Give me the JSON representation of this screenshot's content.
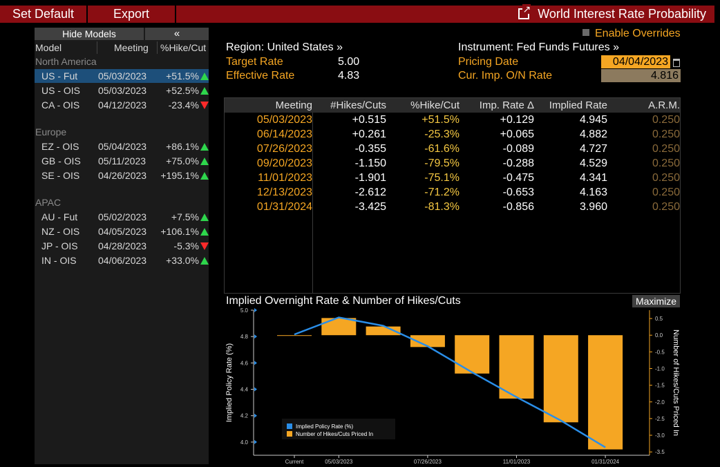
{
  "topbar": {
    "set_default": "Set Default",
    "export": "Export",
    "title": "World Interest Rate Probability",
    "external_icon": "external-link-icon"
  },
  "models": {
    "hide_models": "Hide Models",
    "collapse_icon": "«",
    "headers": {
      "model": "Model",
      "meeting": "Meeting",
      "pct": "%Hike/Cut"
    },
    "regions": [
      {
        "name": "North America",
        "rows": [
          {
            "model": "US - Fut",
            "meeting": "05/03/2023",
            "pct": "+51.5%",
            "dir": "up",
            "selected": true
          },
          {
            "model": "US - OIS",
            "meeting": "05/03/2023",
            "pct": "+52.5%",
            "dir": "up"
          },
          {
            "model": "CA - OIS",
            "meeting": "04/12/2023",
            "pct": "-23.4%",
            "dir": "down"
          }
        ]
      },
      {
        "name": "Europe",
        "rows": [
          {
            "model": "EZ - OIS",
            "meeting": "05/04/2023",
            "pct": "+86.1%",
            "dir": "up"
          },
          {
            "model": "GB - OIS",
            "meeting": "05/11/2023",
            "pct": "+75.0%",
            "dir": "up"
          },
          {
            "model": "SE - OIS",
            "meeting": "04/26/2023",
            "pct": "+195.1%",
            "dir": "up"
          }
        ]
      },
      {
        "name": "APAC",
        "rows": [
          {
            "model": "AU - Fut",
            "meeting": "05/02/2023",
            "pct": "+7.5%",
            "dir": "up"
          },
          {
            "model": "NZ - OIS",
            "meeting": "04/05/2023",
            "pct": "+106.1%",
            "dir": "up"
          },
          {
            "model": "JP - OIS",
            "meeting": "04/28/2023",
            "pct": "-5.3%",
            "dir": "down"
          },
          {
            "model": "IN - OIS",
            "meeting": "04/06/2023",
            "pct": "+33.0%",
            "dir": "up"
          }
        ]
      }
    ]
  },
  "overview": {
    "enable_overrides": "Enable Overrides",
    "region": "Region: United States »",
    "instrument": "Instrument: Fed Funds Futures »",
    "target_rate_label": "Target Rate",
    "target_rate": "5.00",
    "effective_rate_label": "Effective Rate",
    "effective_rate": "4.83",
    "pricing_date_label": "Pricing Date",
    "pricing_date": "04/04/2023",
    "on_rate_label": "Cur. Imp. O/N Rate",
    "on_rate": "4.816"
  },
  "table": {
    "headers": [
      "Meeting",
      "#Hikes/Cuts",
      "%Hike/Cut",
      "Imp. Rate Δ",
      "Implied Rate",
      "A.R.M."
    ],
    "rows": [
      [
        "05/03/2023",
        "+0.515",
        "+51.5%",
        "+0.129",
        "4.945",
        "0.250"
      ],
      [
        "06/14/2023",
        "+0.261",
        "-25.3%",
        "+0.065",
        "4.882",
        "0.250"
      ],
      [
        "07/26/2023",
        "-0.355",
        "-61.6%",
        "-0.089",
        "4.727",
        "0.250"
      ],
      [
        "09/20/2023",
        "-1.150",
        "-79.5%",
        "-0.288",
        "4.529",
        "0.250"
      ],
      [
        "11/01/2023",
        "-1.901",
        "-75.1%",
        "-0.475",
        "4.341",
        "0.250"
      ],
      [
        "12/13/2023",
        "-2.612",
        "-71.2%",
        "-0.653",
        "4.163",
        "0.250"
      ],
      [
        "01/31/2024",
        "-3.425",
        "-81.3%",
        "-0.856",
        "3.960",
        "0.250"
      ]
    ]
  },
  "chart": {
    "title": "Implied Overnight Rate & Number of Hikes/Cuts",
    "maximize": "Maximize"
  },
  "chart_data": {
    "type": "bar",
    "categories": [
      "Current",
      "05/03/2023",
      "06/14/2023",
      "07/26/2023",
      "09/20/2023",
      "11/01/2023",
      "12/13/2023",
      "01/31/2024"
    ],
    "x_tick_labels": [
      "Current",
      "05/03/2023",
      "07/26/2023",
      "11/01/2023",
      "01/31/2024"
    ],
    "series": [
      {
        "name": "Implied Policy Rate (%)",
        "type": "line",
        "axis": "left",
        "color": "#2a8ee8",
        "values": [
          4.816,
          4.945,
          4.882,
          4.727,
          4.529,
          4.341,
          4.163,
          3.96
        ]
      },
      {
        "name": "Number of Hikes/Cuts Priced In",
        "type": "bar",
        "axis": "right",
        "color": "#f5a623",
        "values": [
          0.0,
          0.515,
          0.261,
          -0.355,
          -1.15,
          -1.901,
          -2.612,
          -3.425
        ]
      }
    ],
    "ylabel": "Implied Policy Rate (%)",
    "ylim": [
      3.9,
      5.0
    ],
    "yticks": [
      "5.0",
      "4.8",
      "4.6",
      "4.4",
      "4.2",
      "4.0"
    ],
    "y2label": "Number of Hikes/Cuts Priced In",
    "y2lim": [
      -3.6,
      0.75
    ],
    "y2ticks": [
      "0.5",
      "0.0",
      "-0.5",
      "-1.0",
      "-1.5",
      "-2.0",
      "-2.5",
      "-3.0",
      "-3.5"
    ],
    "legend": "bottom-left",
    "grid": false
  }
}
